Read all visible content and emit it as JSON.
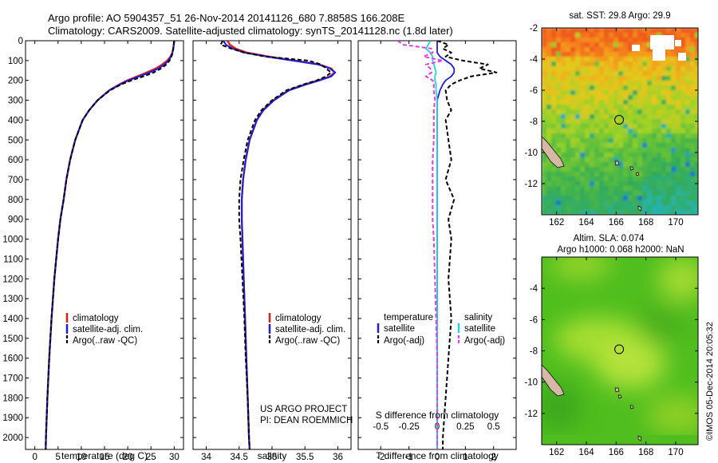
{
  "header": {
    "line1": "Argo profile: AO 5904357_51 26-Nov-2014 20141126_680 7.8858S 166.208E",
    "line2": "Climatology: CARS2009. Satellite-adjusted climatology: synTS_20141128.nc (1.8d later)"
  },
  "colors": {
    "climatology": "#e31a1c",
    "satellite": "#1f1fd8",
    "argo": "#000000",
    "satellite_salinity": "#22d3e6",
    "argo_salinity": "#e83be0"
  },
  "chart_data": [
    {
      "type": "line",
      "panel": "temperature",
      "xlabel": "temperature (deg C)",
      "ylabel": "",
      "xlim": [
        -2,
        32
      ],
      "ylim": [
        2060,
        0
      ],
      "xticks": [
        0,
        5,
        10,
        15,
        20,
        25,
        30
      ],
      "yticks": [
        0,
        100,
        200,
        300,
        400,
        500,
        600,
        700,
        800,
        900,
        1000,
        1100,
        1200,
        1300,
        1400,
        1500,
        1600,
        1700,
        1800,
        1900,
        2000
      ],
      "depth": [
        0,
        20,
        40,
        60,
        80,
        100,
        120,
        140,
        160,
        180,
        200,
        220,
        250,
        300,
        350,
        400,
        500,
        600,
        700,
        800,
        900,
        1000,
        1200,
        1400,
        1600,
        1800,
        2000,
        2060
      ],
      "series": [
        {
          "name": "climatology",
          "values": [
            30,
            29.9,
            29.8,
            29.6,
            29.2,
            28.5,
            27.4,
            26,
            24.1,
            22,
            19.9,
            18.2,
            16,
            13.5,
            11.7,
            10.3,
            8.7,
            7.6,
            6.8,
            6.2,
            5.5,
            5,
            4.2,
            3.6,
            3.1,
            2.7,
            2.4,
            2.35
          ]
        },
        {
          "name": "satellite-adj. clim.",
          "values": [
            30,
            29.9,
            29.8,
            29.6,
            29.3,
            28.8,
            27.9,
            26.6,
            24.7,
            22.5,
            20.2,
            18.4,
            16.1,
            13.5,
            11.7,
            10.3,
            8.7,
            7.6,
            6.8,
            6.2,
            5.5,
            5,
            4.2,
            3.6,
            3.1,
            2.7,
            2.4,
            2.35
          ]
        },
        {
          "name": "Argo(..raw -QC)",
          "values": [
            30,
            29.9,
            29.8,
            29.7,
            29.4,
            29,
            28.3,
            27.2,
            25.6,
            23.4,
            20.8,
            18.6,
            16.2,
            13.5,
            11.7,
            10.3,
            8.7,
            7.6,
            6.8,
            6.2,
            5.5,
            5,
            4.2,
            3.6,
            3.1,
            2.7,
            2.4,
            2.35
          ]
        }
      ],
      "legend": [
        "climatology",
        "satellite-adj. clim.",
        "Argo(..raw -QC)"
      ],
      "legend_position": "bottom-center"
    },
    {
      "type": "line",
      "panel": "salinity",
      "xlabel": "salinity",
      "xlim": [
        33.8,
        36.2
      ],
      "ylim": [
        2060,
        0
      ],
      "xticks": [
        34,
        34.5,
        35,
        35.5,
        36
      ],
      "xticklabels": [
        "34",
        "34.5",
        "35",
        "35.5",
        "36"
      ],
      "depth": [
        0,
        20,
        40,
        60,
        80,
        100,
        120,
        140,
        160,
        180,
        200,
        220,
        250,
        300,
        350,
        400,
        500,
        600,
        700,
        800,
        900,
        1000,
        1200,
        1400,
        1600,
        1800,
        2000,
        2060
      ],
      "series": [
        {
          "name": "climatology",
          "values": [
            34.32,
            34.36,
            34.45,
            34.62,
            34.95,
            35.35,
            35.72,
            35.9,
            35.95,
            35.88,
            35.7,
            35.5,
            35.25,
            35.02,
            34.86,
            34.77,
            34.66,
            34.6,
            34.56,
            34.54,
            34.54,
            34.55,
            34.57,
            34.59,
            34.61,
            34.63,
            34.65,
            34.66
          ]
        },
        {
          "name": "satellite-adj. clim.",
          "values": [
            34.26,
            34.3,
            34.4,
            34.58,
            34.92,
            35.32,
            35.7,
            35.88,
            35.96,
            35.9,
            35.72,
            35.52,
            35.26,
            35.03,
            34.87,
            34.77,
            34.66,
            34.6,
            34.56,
            34.54,
            34.54,
            34.55,
            34.57,
            34.59,
            34.61,
            34.63,
            34.65,
            34.66
          ]
        },
        {
          "name": "Argo(..raw -QC)",
          "values": [
            34.25,
            34.22,
            34.38,
            34.58,
            34.9,
            35.55,
            35.75,
            35.82,
            35.9,
            35.82,
            35.68,
            35.48,
            35.22,
            35,
            34.84,
            34.74,
            34.63,
            34.57,
            34.52,
            34.5,
            34.5,
            34.52,
            34.55,
            34.58,
            34.6,
            34.63,
            34.65,
            34.66
          ]
        }
      ],
      "legend": [
        "climatology",
        "satellite-adj. clim.",
        "Argo(..raw -QC)"
      ],
      "legend_position": "bottom-center",
      "annotations": [
        "US ARGO PROJECT",
        "PI: DEAN ROEMMICH"
      ]
    },
    {
      "type": "line",
      "panel": "difference",
      "xlabel": "T difference from climatology",
      "x2label": "S difference from climatology",
      "xlim": [
        -2.8,
        2.8
      ],
      "ylim": [
        2060,
        0
      ],
      "xticks": [
        -2,
        -1,
        0,
        1,
        2
      ],
      "x2ticks": [
        -0.5,
        -0.25,
        0,
        0.25,
        0.5
      ],
      "x2scale": 4,
      "depth": [
        0,
        20,
        40,
        60,
        80,
        100,
        120,
        140,
        160,
        180,
        200,
        220,
        250,
        300,
        350,
        400,
        500,
        600,
        700,
        800,
        900,
        1000,
        1200,
        1400,
        1600,
        1800,
        2000,
        2060
      ],
      "series": [
        {
          "name": "temperature satellite",
          "values": [
            0,
            0,
            0,
            0,
            0.1,
            0.3,
            0.5,
            0.6,
            0.6,
            0.5,
            0.3,
            0.2,
            0.1,
            0,
            0,
            0,
            0,
            0,
            0,
            0,
            0,
            0,
            0,
            0,
            0,
            0,
            0,
            0
          ]
        },
        {
          "name": "temperature Argo(-adj)",
          "values": [
            0,
            0.4,
            0.2,
            0.5,
            0.3,
            0.9,
            1.8,
            1.5,
            2.1,
            1.2,
            0.8,
            0.5,
            0.3,
            0.35,
            0.5,
            0.3,
            0.4,
            0.5,
            0.3,
            0.6,
            0.4,
            0.5,
            0.4,
            0.5,
            0.4,
            0.3,
            0.2,
            0.2
          ]
        },
        {
          "name": "salinity satellite",
          "values": [
            -0.06,
            -0.08,
            -0.1,
            -0.06,
            -0.04,
            -0.04,
            -0.03,
            -0.02,
            -0.01,
            -0.02,
            -0.02,
            -0.01,
            -0.01,
            0,
            0,
            0,
            0,
            0,
            0,
            0,
            0,
            0,
            0,
            0,
            0,
            0,
            0,
            0
          ]
        },
        {
          "name": "salinity Argo(-adj)",
          "values": [
            -0.35,
            -0.3,
            -0.05,
            -0.04,
            -0.12,
            0.05,
            -0.1,
            -0.06,
            -0.05,
            -0.1,
            -0.04,
            -0.03,
            -0.03,
            -0.02,
            -0.03,
            -0.03,
            -0.03,
            -0.04,
            -0.04,
            -0.04,
            -0.04,
            -0.03,
            -0.02,
            -0.01,
            0,
            0,
            0,
            0
          ]
        }
      ],
      "legend_left_title": "temperature",
      "legend_right_title": "salinity",
      "legend_left": [
        "satellite",
        "Argo(-adj)"
      ],
      "legend_right": [
        "satellite",
        "Argo(-adj)"
      ],
      "legend_position": "bottom-center"
    },
    {
      "type": "heatmap",
      "panel": "sst-map",
      "title": "sat. SST: 29.8 Argo: 29.9",
      "xlim": [
        161,
        171.5
      ],
      "ylim": [
        -14,
        -2
      ],
      "xticks": [
        162,
        164,
        166,
        168,
        170
      ],
      "yticks": [
        -2,
        -4,
        -6,
        -8,
        -10,
        -12
      ],
      "yticklabels": [
        "-2",
        "-4",
        "-6",
        "-8",
        "-10",
        "-12"
      ],
      "marker": {
        "lon": 166.2,
        "lat": -7.9
      }
    },
    {
      "type": "heatmap",
      "panel": "sla-map",
      "title": "Altim. SLA: 0.074",
      "subtitle": "Argo h1000: 0.068 h2000: NaN",
      "xlim": [
        161,
        171.5
      ],
      "ylim": [
        -14,
        -2
      ],
      "xticks": [
        162,
        164,
        166,
        168,
        170
      ],
      "yticks": [
        -4,
        -6,
        -8,
        -10,
        -12
      ],
      "yticklabels": [
        "-4",
        "-6",
        "-8",
        "-10",
        "-12"
      ],
      "marker": {
        "lon": 166.2,
        "lat": -7.9
      }
    }
  ],
  "footer": {
    "stamp": "©IMOS 05-Dec-2014 20:05:32"
  }
}
